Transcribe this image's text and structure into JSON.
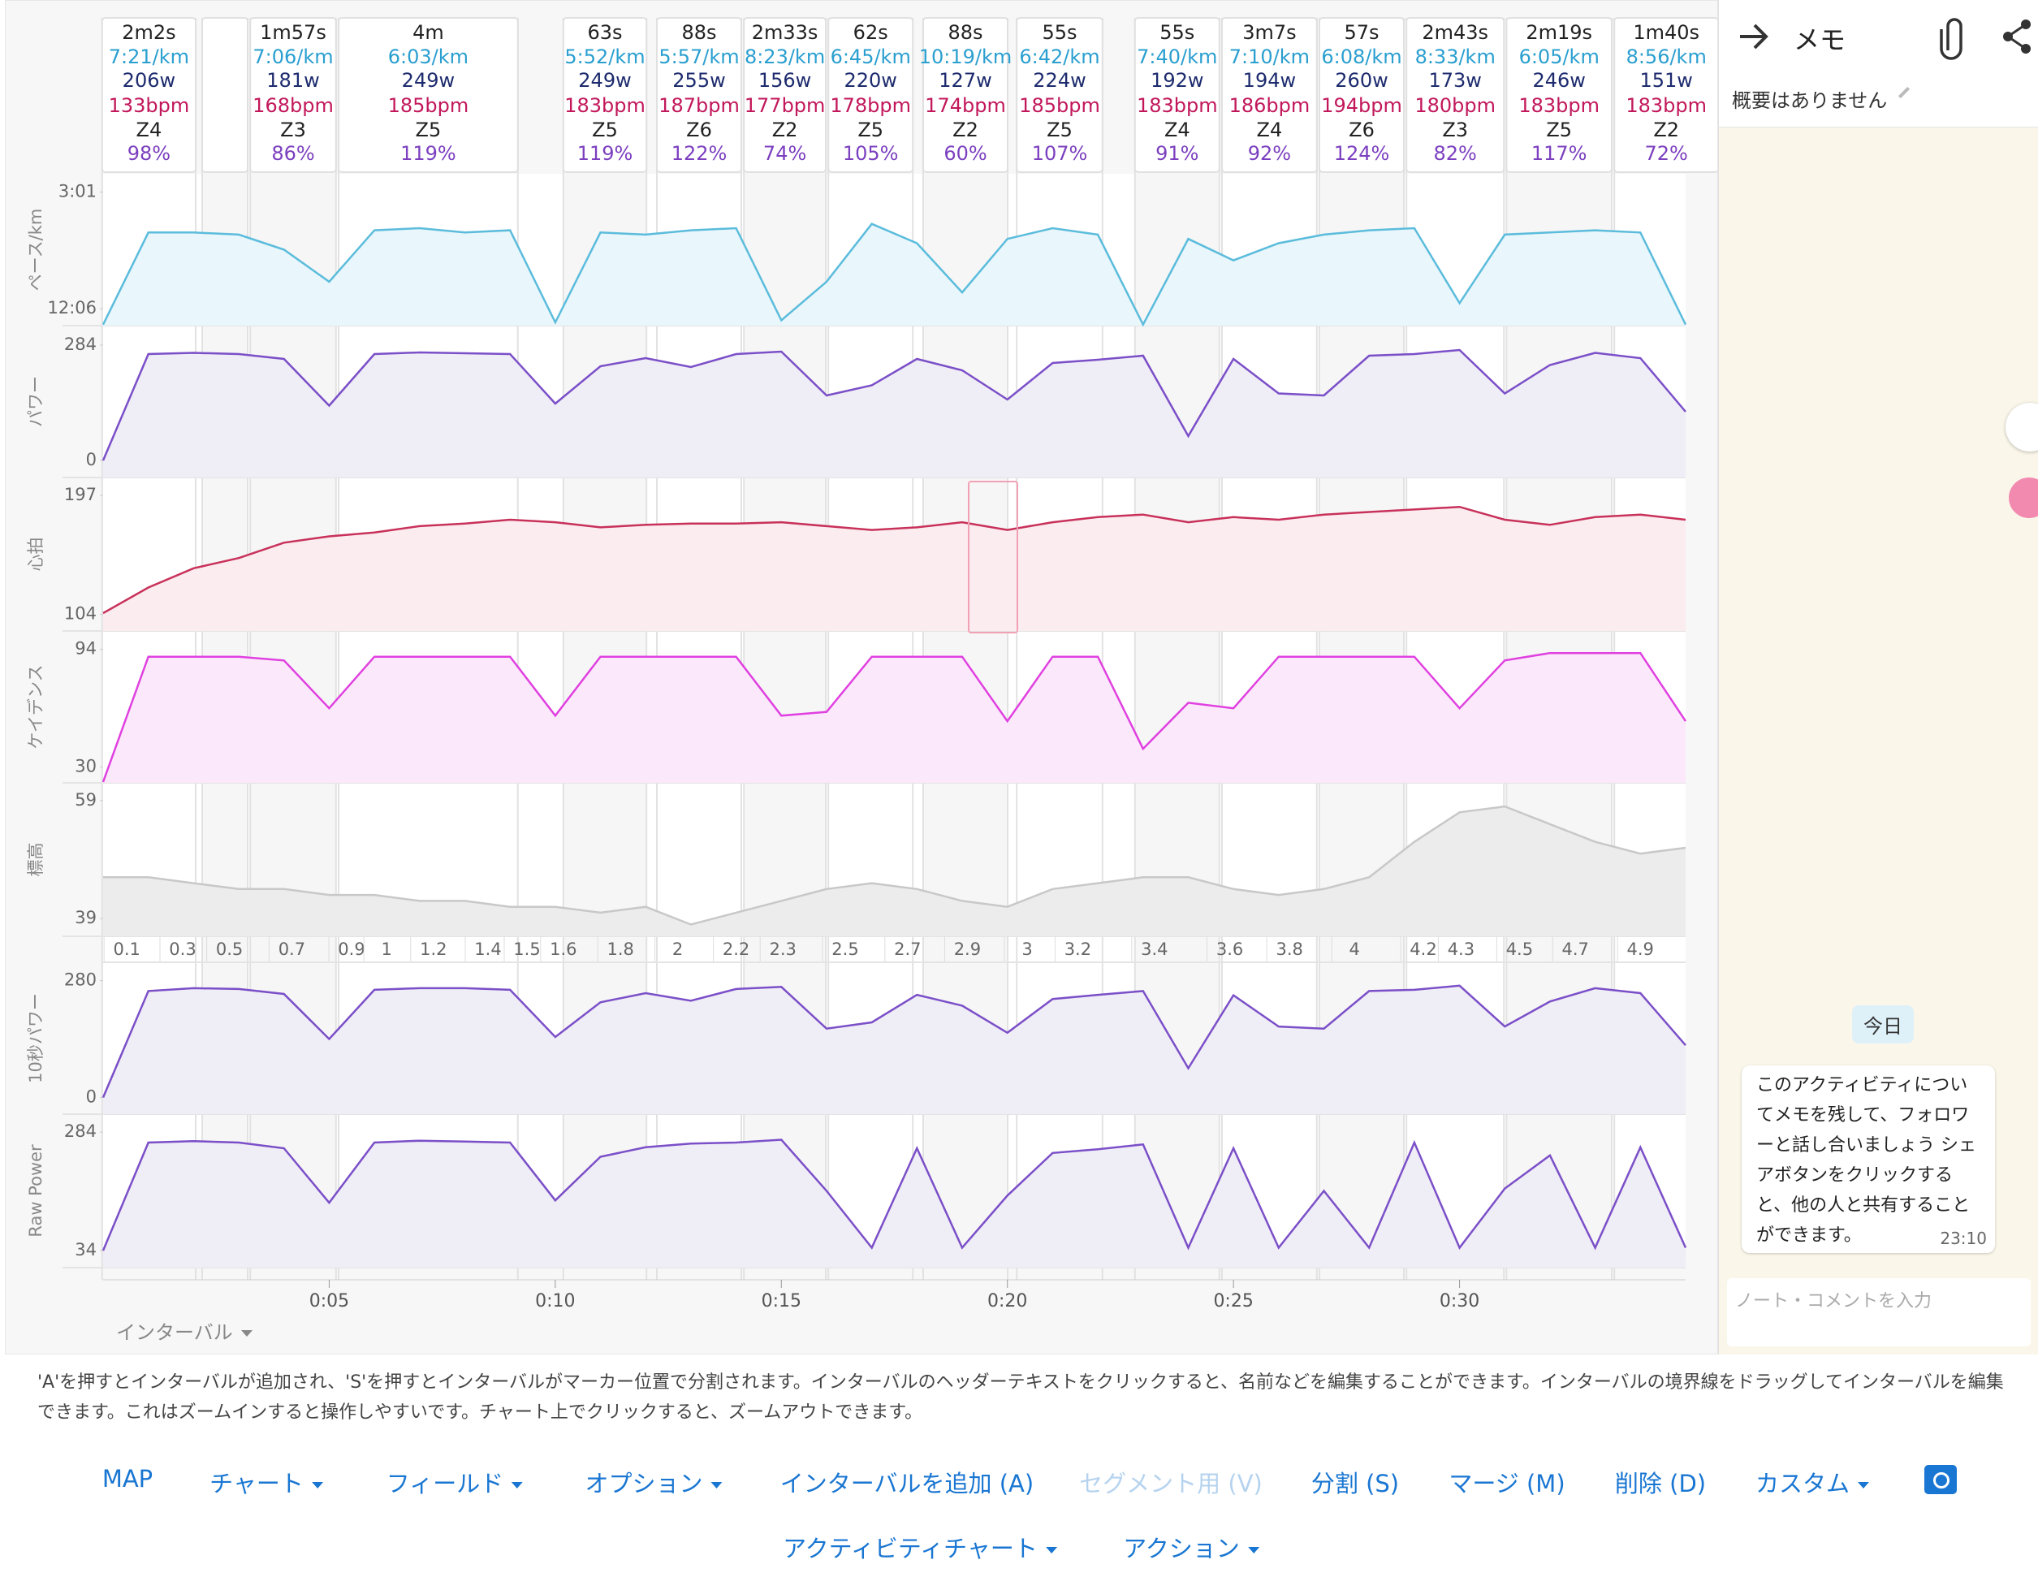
{
  "intervals": [
    {
      "duration": "2m2s",
      "pace": "7:21/km",
      "power": "206w",
      "hr": "133bpm",
      "zone": "Z4",
      "percent": "98%"
    },
    {
      "duration": "1m57s",
      "pace": "7:06/km",
      "power": "181w",
      "hr": "168bpm",
      "zone": "Z3",
      "percent": "86%"
    },
    {
      "duration": "4m",
      "pace": "6:03/km",
      "power": "249w",
      "hr": "185bpm",
      "zone": "Z5",
      "percent": "119%"
    },
    {
      "duration": "63s",
      "pace": "5:52/km",
      "power": "249w",
      "hr": "183bpm",
      "zone": "Z5",
      "percent": "119%"
    },
    {
      "duration": "88s",
      "pace": "5:57/km",
      "power": "255w",
      "hr": "187bpm",
      "zone": "Z6",
      "percent": "122%"
    },
    {
      "duration": "2m33s",
      "pace": "8:23/km",
      "power": "156w",
      "hr": "177bpm",
      "zone": "Z2",
      "percent": "74%"
    },
    {
      "duration": "62s",
      "pace": "6:45/km",
      "power": "220w",
      "hr": "178bpm",
      "zone": "Z5",
      "percent": "105%"
    },
    {
      "duration": "88s",
      "pace": "10:19/km",
      "power": "127w",
      "hr": "174bpm",
      "zone": "Z2",
      "percent": "60%"
    },
    {
      "duration": "55s",
      "pace": "6:42/km",
      "power": "224w",
      "hr": "185bpm",
      "zone": "Z5",
      "percent": "107%"
    },
    {
      "duration": "55s",
      "pace": "7:40/km",
      "power": "192w",
      "hr": "183bpm",
      "zone": "Z4",
      "percent": "91%"
    },
    {
      "duration": "3m7s",
      "pace": "7:10/km",
      "power": "194w",
      "hr": "186bpm",
      "zone": "Z4",
      "percent": "92%"
    },
    {
      "duration": "57s",
      "pace": "6:08/km",
      "power": "260w",
      "hr": "194bpm",
      "zone": "Z6",
      "percent": "124%"
    },
    {
      "duration": "2m43s",
      "pace": "8:33/km",
      "power": "173w",
      "hr": "180bpm",
      "zone": "Z3",
      "percent": "82%"
    },
    {
      "duration": "2m19s",
      "pace": "6:05/km",
      "power": "246w",
      "hr": "183bpm",
      "zone": "Z5",
      "percent": "117%"
    },
    {
      "duration": "1m40s",
      "pace": "8:56/km",
      "power": "151w",
      "hr": "183bpm",
      "zone": "Z2",
      "percent": "72%"
    }
  ],
  "chart_data": [
    {
      "type": "line",
      "ylabel": "ペース/km",
      "ylim": [
        805,
        96
      ],
      "yticks": [
        {
          "value": 181,
          "label": "3:01"
        },
        {
          "value": 726,
          "label": "12:06"
        }
      ],
      "color": "#5bbcdc",
      "fill": "#e9f6fb",
      "x": [
        0,
        1,
        2,
        3,
        4,
        5,
        6,
        7,
        8,
        9,
        10,
        11,
        12,
        13,
        14,
        15,
        16,
        17,
        18,
        19,
        20,
        21,
        22,
        23,
        24,
        25,
        26,
        27,
        28,
        29,
        30,
        31,
        32,
        33,
        34,
        35
      ],
      "values": [
        800,
        370,
        370,
        380,
        450,
        600,
        360,
        350,
        370,
        360,
        790,
        370,
        380,
        360,
        350,
        780,
        600,
        330,
        420,
        650,
        400,
        350,
        380,
        800,
        400,
        500,
        420,
        380,
        360,
        350,
        700,
        380,
        370,
        360,
        370,
        800
      ]
    },
    {
      "type": "line",
      "ylabel": "パワー",
      "ylim": [
        -42,
        332
      ],
      "yticks": [
        284,
        0
      ],
      "color": "#7b4fc8",
      "fill": "#efedf6",
      "x": [
        0,
        1,
        2,
        3,
        4,
        5,
        6,
        7,
        8,
        9,
        10,
        11,
        12,
        13,
        14,
        15,
        16,
        17,
        18,
        19,
        20,
        21,
        22,
        23,
        24,
        25,
        26,
        27,
        28,
        29,
        30,
        31,
        32,
        33,
        34,
        35
      ],
      "values": [
        0,
        262,
        265,
        262,
        250,
        135,
        262,
        266,
        264,
        262,
        140,
        232,
        252,
        230,
        262,
        268,
        160,
        185,
        250,
        222,
        150,
        240,
        248,
        258,
        60,
        250,
        165,
        160,
        258,
        262,
        272,
        165,
        235,
        265,
        252,
        120
      ]
    },
    {
      "type": "line",
      "ylabel": "心拍",
      "ylim": [
        91,
        211
      ],
      "yticks": [
        197,
        104
      ],
      "color": "#c8315a",
      "fill": "#fbecef",
      "x": [
        0,
        1,
        2,
        3,
        4,
        5,
        6,
        7,
        8,
        9,
        10,
        11,
        12,
        13,
        14,
        15,
        16,
        17,
        18,
        19,
        20,
        21,
        22,
        23,
        24,
        25,
        26,
        27,
        28,
        29,
        30,
        31,
        32,
        33,
        34,
        35
      ],
      "values": [
        105,
        125,
        140,
        148,
        160,
        165,
        168,
        173,
        175,
        178,
        176,
        172,
        174,
        175,
        175,
        176,
        173,
        170,
        172,
        176,
        170,
        176,
        180,
        182,
        176,
        180,
        178,
        182,
        184,
        186,
        188,
        178,
        174,
        180,
        182,
        178
      ]
    },
    {
      "type": "line",
      "ylabel": "ケイデンス",
      "ylim": [
        21.5,
        104
      ],
      "yticks": [
        94,
        30
      ],
      "color": "#e040e0",
      "fill": "#fbe9fb",
      "x": [
        0,
        1,
        2,
        3,
        4,
        5,
        6,
        7,
        8,
        9,
        10,
        11,
        12,
        13,
        14,
        15,
        16,
        17,
        18,
        19,
        20,
        21,
        22,
        23,
        24,
        25,
        26,
        27,
        28,
        29,
        30,
        31,
        32,
        33,
        34,
        35
      ],
      "values": [
        22,
        90,
        90,
        90,
        88,
        62,
        90,
        90,
        90,
        90,
        58,
        90,
        90,
        90,
        90,
        58,
        60,
        90,
        90,
        90,
        55,
        90,
        90,
        40,
        65,
        62,
        90,
        90,
        90,
        90,
        62,
        88,
        92,
        92,
        92,
        55
      ]
    },
    {
      "type": "line",
      "ylabel": "標高",
      "ylim": [
        36,
        62
      ],
      "yticks": [
        59,
        39
      ],
      "color": "#c8c8c8",
      "fill": "#ececec",
      "x": [
        0,
        1,
        2,
        3,
        4,
        5,
        6,
        7,
        8,
        9,
        10,
        11,
        12,
        13,
        14,
        15,
        16,
        17,
        18,
        19,
        20,
        21,
        22,
        23,
        24,
        25,
        26,
        27,
        28,
        29,
        30,
        31,
        32,
        33,
        34,
        35
      ],
      "values": [
        46,
        46,
        45,
        44,
        44,
        43,
        43,
        42,
        42,
        41,
        41,
        40,
        41,
        38,
        40,
        42,
        44,
        45,
        44,
        42,
        41,
        44,
        45,
        46,
        46,
        44,
        43,
        44,
        46,
        52,
        57,
        58,
        55,
        52,
        50,
        51
      ]
    },
    {
      "type": "line",
      "ylabel": "10秒パワー",
      "ylim": [
        -40,
        324
      ],
      "yticks": [
        280,
        0
      ],
      "color": "#7b4fc8",
      "fill": "#efedf6",
      "x": [
        0,
        1,
        2,
        3,
        4,
        5,
        6,
        7,
        8,
        9,
        10,
        11,
        12,
        13,
        14,
        15,
        16,
        17,
        18,
        19,
        20,
        21,
        22,
        23,
        24,
        25,
        26,
        27,
        28,
        29,
        30,
        31,
        32,
        33,
        34,
        35
      ],
      "values": [
        0,
        255,
        262,
        260,
        248,
        140,
        258,
        262,
        262,
        258,
        145,
        228,
        250,
        232,
        260,
        265,
        165,
        180,
        246,
        220,
        155,
        236,
        246,
        255,
        70,
        245,
        170,
        165,
        255,
        258,
        268,
        170,
        230,
        262,
        250,
        125
      ]
    },
    {
      "type": "line",
      "ylabel": "Raw Power",
      "ylim": [
        -2,
        322
      ],
      "yticks": [
        284,
        34
      ],
      "color": "#7b4fc8",
      "fill": "#efedf6",
      "x": [
        0,
        1,
        2,
        3,
        4,
        5,
        6,
        7,
        8,
        9,
        10,
        11,
        12,
        13,
        14,
        15,
        16,
        17,
        18,
        19,
        20,
        21,
        22,
        23,
        24,
        25,
        26,
        27,
        28,
        29,
        30,
        31,
        32,
        33,
        34,
        35
      ],
      "values": [
        34,
        262,
        265,
        262,
        250,
        135,
        262,
        266,
        264,
        262,
        140,
        232,
        252,
        260,
        262,
        268,
        160,
        40,
        250,
        40,
        150,
        240,
        248,
        258,
        40,
        250,
        40,
        160,
        40,
        262,
        40,
        165,
        235,
        40,
        252,
        40
      ]
    }
  ],
  "time_axis": {
    "xlim": [
      0,
      35
    ],
    "xticks": [
      {
        "value": 5,
        "label": "0:05"
      },
      {
        "value": 10,
        "label": "0:10"
      },
      {
        "value": 15,
        "label": "0:15"
      },
      {
        "value": 20,
        "label": "0:20"
      },
      {
        "value": 25,
        "label": "0:25"
      },
      {
        "value": 30,
        "label": "0:30"
      }
    ]
  },
  "distance_labels": [
    0.1,
    0.3,
    0.5,
    0.7,
    0.9,
    1,
    1.2,
    1.4,
    1.5,
    1.6,
    1.8,
    2,
    2.2,
    2.3,
    2.5,
    2.7,
    2.9,
    3,
    3.2,
    3.4,
    3.6,
    3.8,
    4,
    4.2,
    4.3,
    4.5,
    4.7,
    4.9
  ],
  "interval_menu": "インターバル",
  "memo": {
    "title": "メモ",
    "summary": "概要はありません",
    "date_chip": "今日",
    "message": "このアクティビティについてメモを残して、フォロワーと話し合いましょう シェアボタンをクリックすると、他の人と共有することができます。",
    "message_time": "23:10",
    "input_placeholder": "ノート・コメントを入力"
  },
  "help_text": "'A'を押すとインターバルが追加され、'S'を押すとインターバルがマーカー位置で分割されます。インターバルのヘッダーテキストをクリックすると、名前などを編集することができます。インターバルの境界線をドラッグしてインターバルを編集できます。これはズームインすると操作しやすいです。チャート上でクリックすると、ズームアウトできます。",
  "buttons": [
    "MAP",
    "チャート",
    "フィールド",
    "オプション",
    "インターバルを追加 (A)",
    "セグメント用 (V)",
    "分割 (S)",
    "マージ (M)",
    "削除 (D)",
    "カスタム"
  ],
  "buttons_row2": [
    "アクティビティチャート",
    "アクション"
  ]
}
